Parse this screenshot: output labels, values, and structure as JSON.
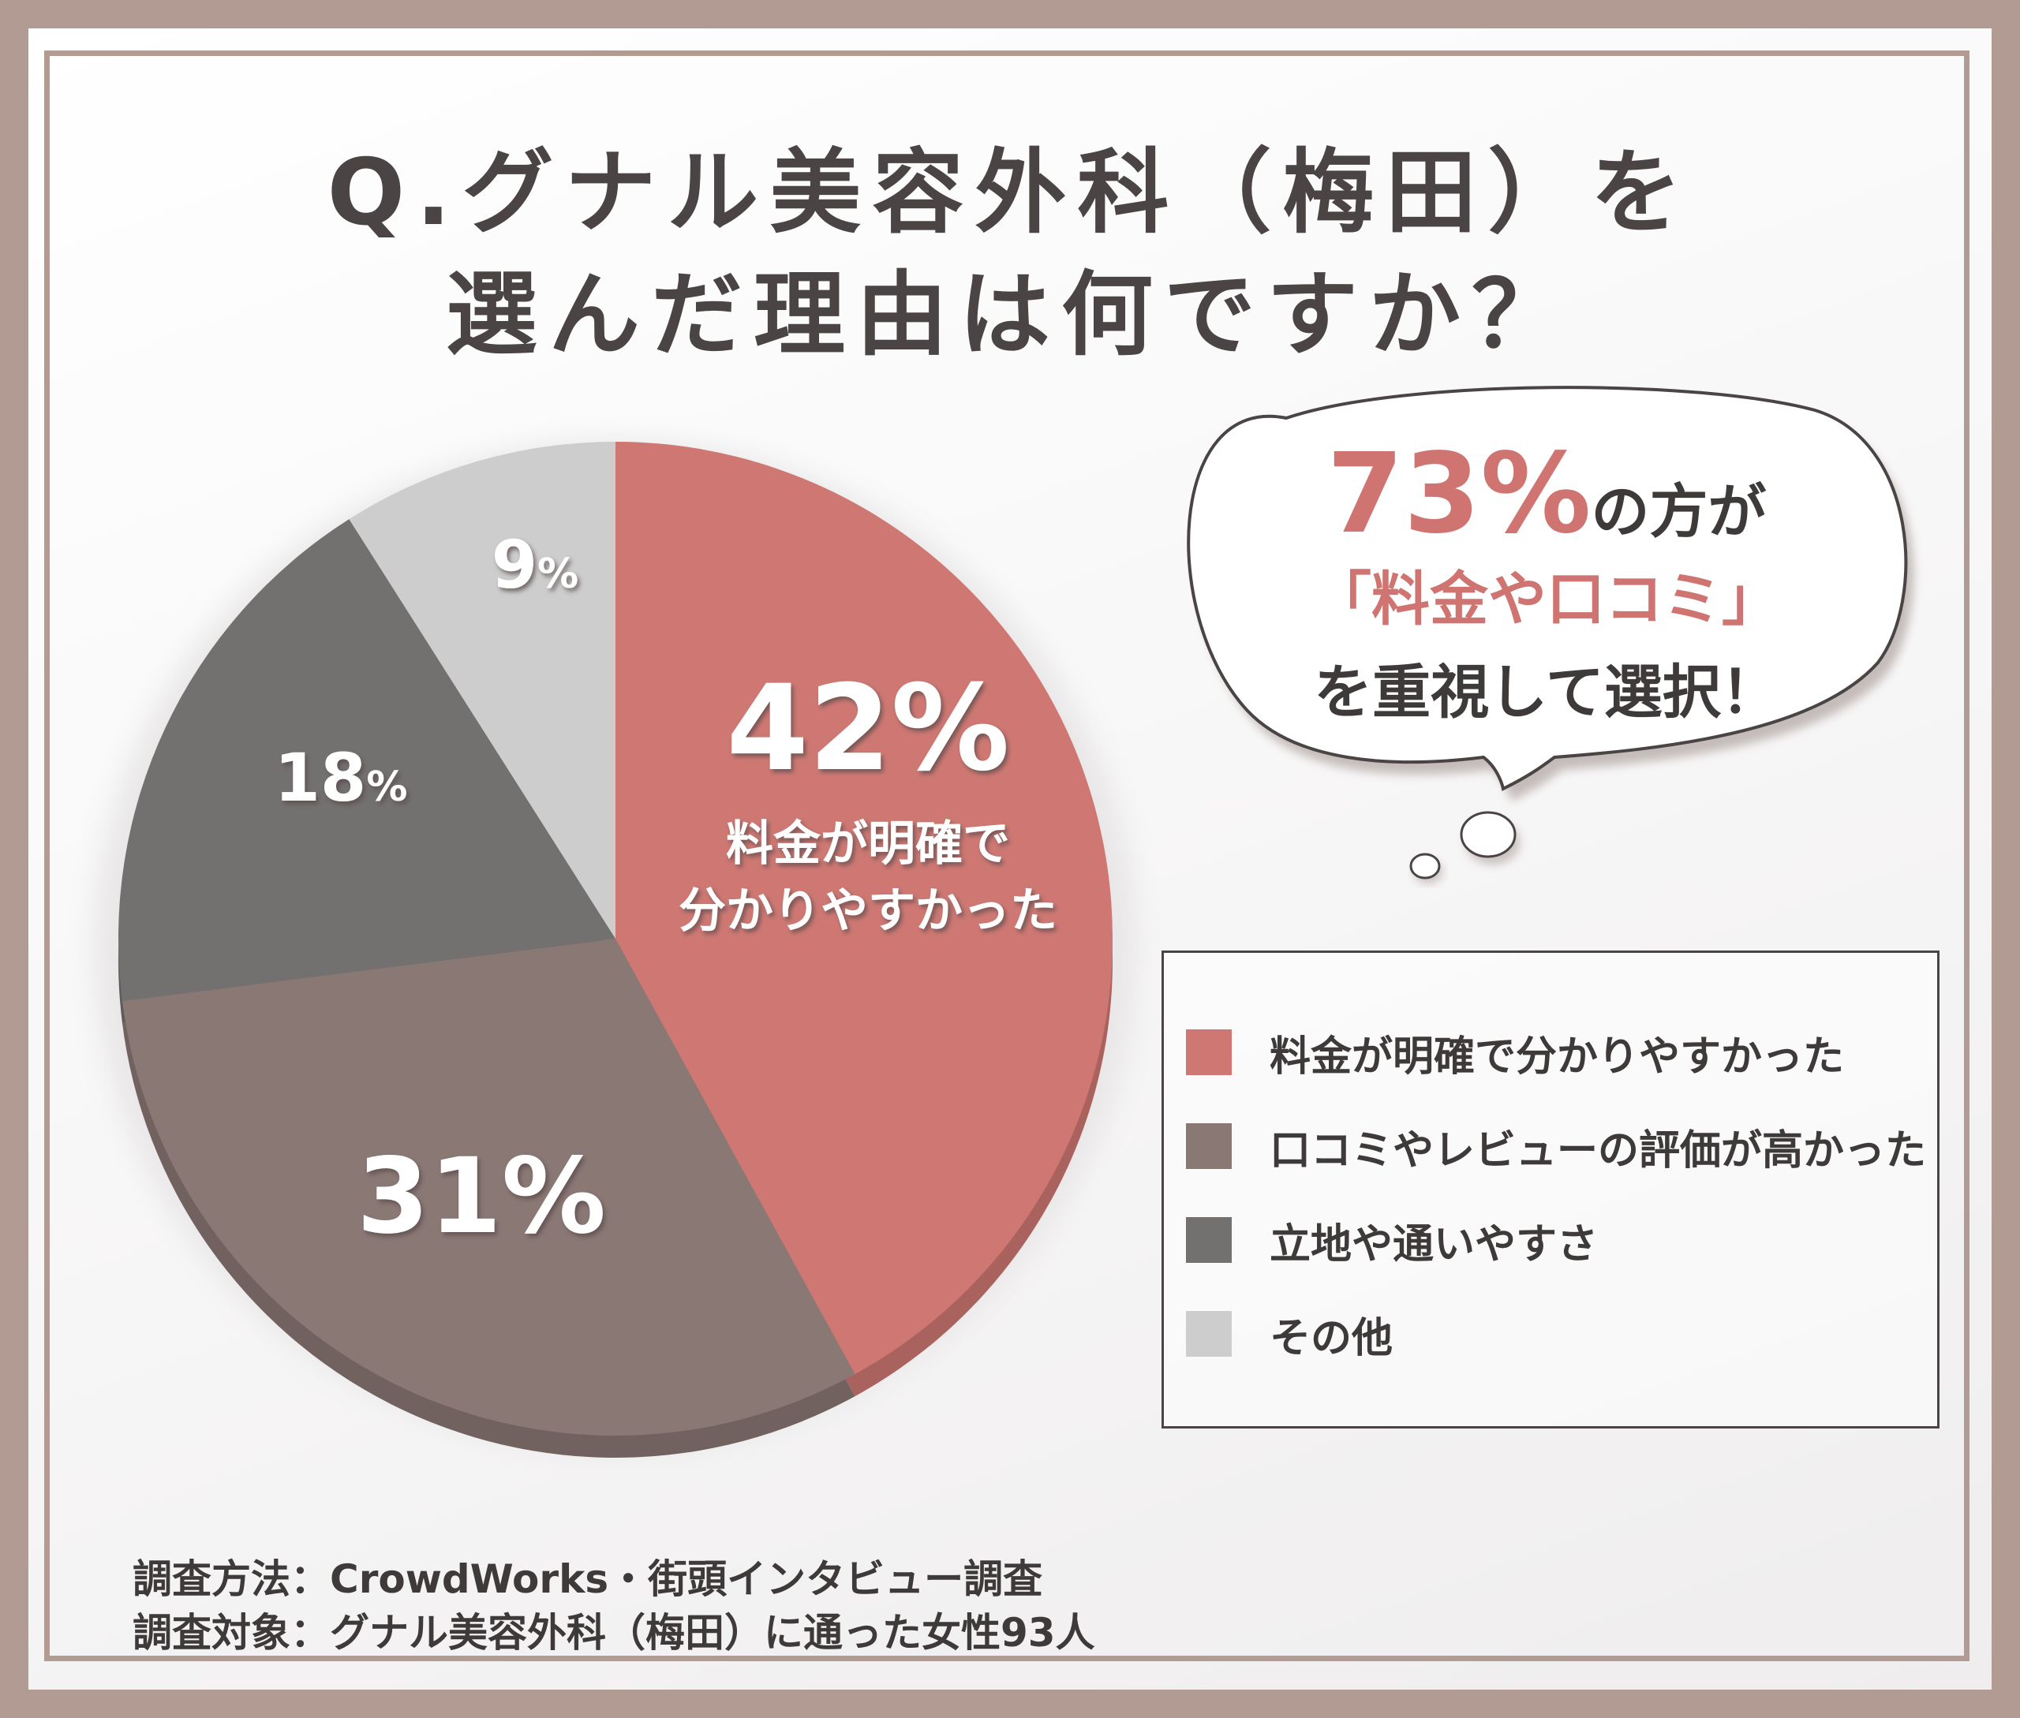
{
  "title": {
    "line1": "Q.グナル美容外科（梅田）を",
    "line2": "選んだ理由は何ですか？"
  },
  "callout": {
    "percent": "73%",
    "line1_rest": "の方が",
    "line2": "「料金や口コミ」",
    "line3": "を重視して選択！"
  },
  "chart_data": {
    "type": "pie",
    "categories": [
      "料金が明確で分かりやすかった",
      "口コミやレビューの評価が高かった",
      "立地や通いやすさ",
      "その他"
    ],
    "values": [
      42,
      31,
      18,
      9
    ],
    "colors": [
      "#cf7873",
      "#8a7875",
      "#737070",
      "#cdcdcd"
    ],
    "slice_labels": [
      {
        "value": "42",
        "unit": "%",
        "sub1": "料金が明確で",
        "sub2": "分かりやすかった"
      },
      {
        "value": "31",
        "unit": "%"
      },
      {
        "value": "18",
        "unit": "%"
      },
      {
        "value": "9",
        "unit": "%"
      }
    ],
    "legend_position": "right"
  },
  "footer": {
    "method": "調査方法：CrowdWorks・街頭インタビュー調査",
    "target": "調査対象：グナル美容外科（梅田）に通った女性93人"
  }
}
